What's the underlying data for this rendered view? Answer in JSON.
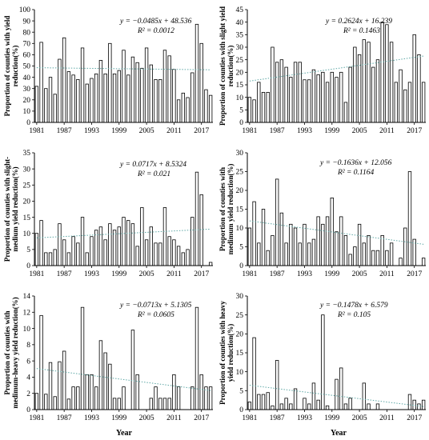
{
  "chart_data": [
    {
      "type": "bar",
      "ylabel": [
        "Proportion of counties with yield",
        "reduction(%)"
      ],
      "equation": "y = −0.0485x + 48.536",
      "r2": "R² = 0.0012",
      "trend": {
        "slope": -0.0485,
        "intercept": 48.536
      },
      "ylim": [
        0,
        100
      ],
      "yticks": [
        0,
        10,
        20,
        30,
        40,
        50,
        60,
        70,
        80,
        90,
        100
      ],
      "xticks": [
        "1981",
        "1987",
        "1993",
        "1999",
        "2005",
        "2011",
        "2017"
      ],
      "values": [
        32,
        71,
        30,
        40,
        25,
        56,
        75,
        45,
        42,
        38,
        66,
        34,
        39,
        43,
        55,
        43,
        70,
        43,
        46,
        64,
        42,
        58,
        53,
        48,
        66,
        51,
        38,
        38,
        64,
        59,
        47,
        20,
        26,
        22,
        44,
        87,
        70,
        29,
        24
      ]
    },
    {
      "type": "bar",
      "ylabel": [
        "Proportion of counties with slight yield",
        "reduction(%)"
      ],
      "equation": "y = 0.2624x + 16.239",
      "r2": "R² = 0.1463",
      "trend": {
        "slope": 0.2624,
        "intercept": 16.239
      },
      "ylim": [
        0,
        45
      ],
      "yticks": [
        0,
        5,
        10,
        15,
        20,
        25,
        30,
        35,
        40,
        45
      ],
      "xticks": [
        "1981",
        "1987",
        "1993",
        "1999",
        "2005",
        "2011",
        "2017"
      ],
      "values": [
        10,
        9,
        16,
        12,
        12,
        30,
        24,
        25,
        22,
        18,
        24,
        24,
        17,
        17,
        21,
        19,
        20,
        16,
        20,
        18,
        20,
        8,
        22,
        30,
        27,
        33,
        32,
        22,
        25,
        40,
        39,
        32,
        16,
        21,
        13,
        16,
        35,
        27,
        16
      ]
    },
    {
      "type": "bar",
      "ylabel": [
        "Proportion of counties with slight-",
        "medium yield reduction(%)"
      ],
      "equation": "y = 0.0717x + 8.5324",
      "r2": "R² = 0.021",
      "trend": {
        "slope": 0.0717,
        "intercept": 8.5324
      },
      "ylim": [
        0,
        35
      ],
      "yticks": [
        0,
        5,
        10,
        15,
        20,
        25,
        30,
        35
      ],
      "xticks": [
        "1981",
        "1987",
        "1993",
        "1999",
        "2005",
        "2011",
        "2017"
      ],
      "values": [
        10,
        14,
        4,
        4,
        5,
        13,
        8,
        4,
        9,
        7,
        15,
        4,
        9,
        11,
        12,
        8,
        13,
        11,
        12,
        15,
        14,
        13,
        6,
        18,
        8,
        12,
        7,
        7,
        18,
        9,
        8,
        6,
        4,
        5,
        15,
        29,
        22,
        0,
        1
      ]
    },
    {
      "type": "bar",
      "ylabel": [
        "Proportion of counties with",
        "medimum yield reduction(%)"
      ],
      "equation": "y = −0.1636x + 12.056",
      "r2": "R² = 0.1164",
      "trend": {
        "slope": -0.1636,
        "intercept": 12.056
      },
      "ylim": [
        0,
        30
      ],
      "yticks": [
        0,
        5,
        10,
        15,
        20,
        25,
        30
      ],
      "xticks": [
        "1981",
        "1987",
        "1993",
        "1999",
        "2005",
        "2011",
        "2017"
      ],
      "values": [
        10,
        17,
        6,
        15,
        4,
        8,
        23,
        14,
        6,
        11,
        10,
        6,
        11,
        6,
        7,
        13,
        11,
        13,
        18,
        9,
        13,
        8,
        3,
        5,
        11,
        6,
        8,
        4,
        4,
        8,
        4,
        6,
        0,
        2,
        10,
        25,
        7,
        0,
        2
      ]
    },
    {
      "type": "bar",
      "ylabel": [
        "Proportion of counties with",
        "medimum-heavy yield reduction(%)"
      ],
      "equation": "y = −0.0713x + 5.1305",
      "r2": "R² = 0.0605",
      "trend": {
        "slope": -0.0713,
        "intercept": 5.1305
      },
      "ylim": [
        0,
        14
      ],
      "yticks": [
        0,
        2,
        4,
        6,
        8,
        10,
        12,
        14
      ],
      "xticks": [
        "1981",
        "1987",
        "1993",
        "1999",
        "2005",
        "2011",
        "2017"
      ],
      "values": [
        2,
        11.6,
        1.9,
        5.8,
        1.6,
        5.9,
        7.2,
        1.3,
        2.8,
        2.8,
        12.6,
        4.3,
        4.3,
        2.8,
        8.5,
        7,
        5.6,
        1.4,
        1.4,
        2.8,
        0,
        9.8,
        4.3,
        0,
        0,
        1.4,
        2.8,
        1.4,
        1.4,
        1.4,
        4.3,
        2.8,
        0,
        0,
        2.8,
        12.6,
        4.3,
        2.8,
        2.8
      ]
    },
    {
      "type": "bar",
      "ylabel": [
        "Proportion of counties with heavy",
        "yield reduction(%)"
      ],
      "equation": "y = −0.1478x + 6.579",
      "r2": "R² = 0.105",
      "trend": {
        "slope": -0.1478,
        "intercept": 6.579
      },
      "ylim": [
        0,
        30
      ],
      "yticks": [
        0,
        5,
        10,
        15,
        20,
        25,
        30
      ],
      "xticks": [
        "1981",
        "1987",
        "1993",
        "1999",
        "2005",
        "2011",
        "2017"
      ],
      "values": [
        2,
        19,
        4,
        4,
        4.5,
        1,
        13,
        1.5,
        3,
        1.5,
        5.5,
        0,
        3,
        1.5,
        7,
        2.5,
        25,
        1,
        0,
        8,
        11,
        1.5,
        3,
        0,
        0,
        7,
        1.5,
        0,
        1.5,
        0,
        0,
        0,
        0,
        0,
        0,
        4,
        2.5,
        1.5,
        2.5
      ]
    }
  ],
  "xtitle": "Year"
}
